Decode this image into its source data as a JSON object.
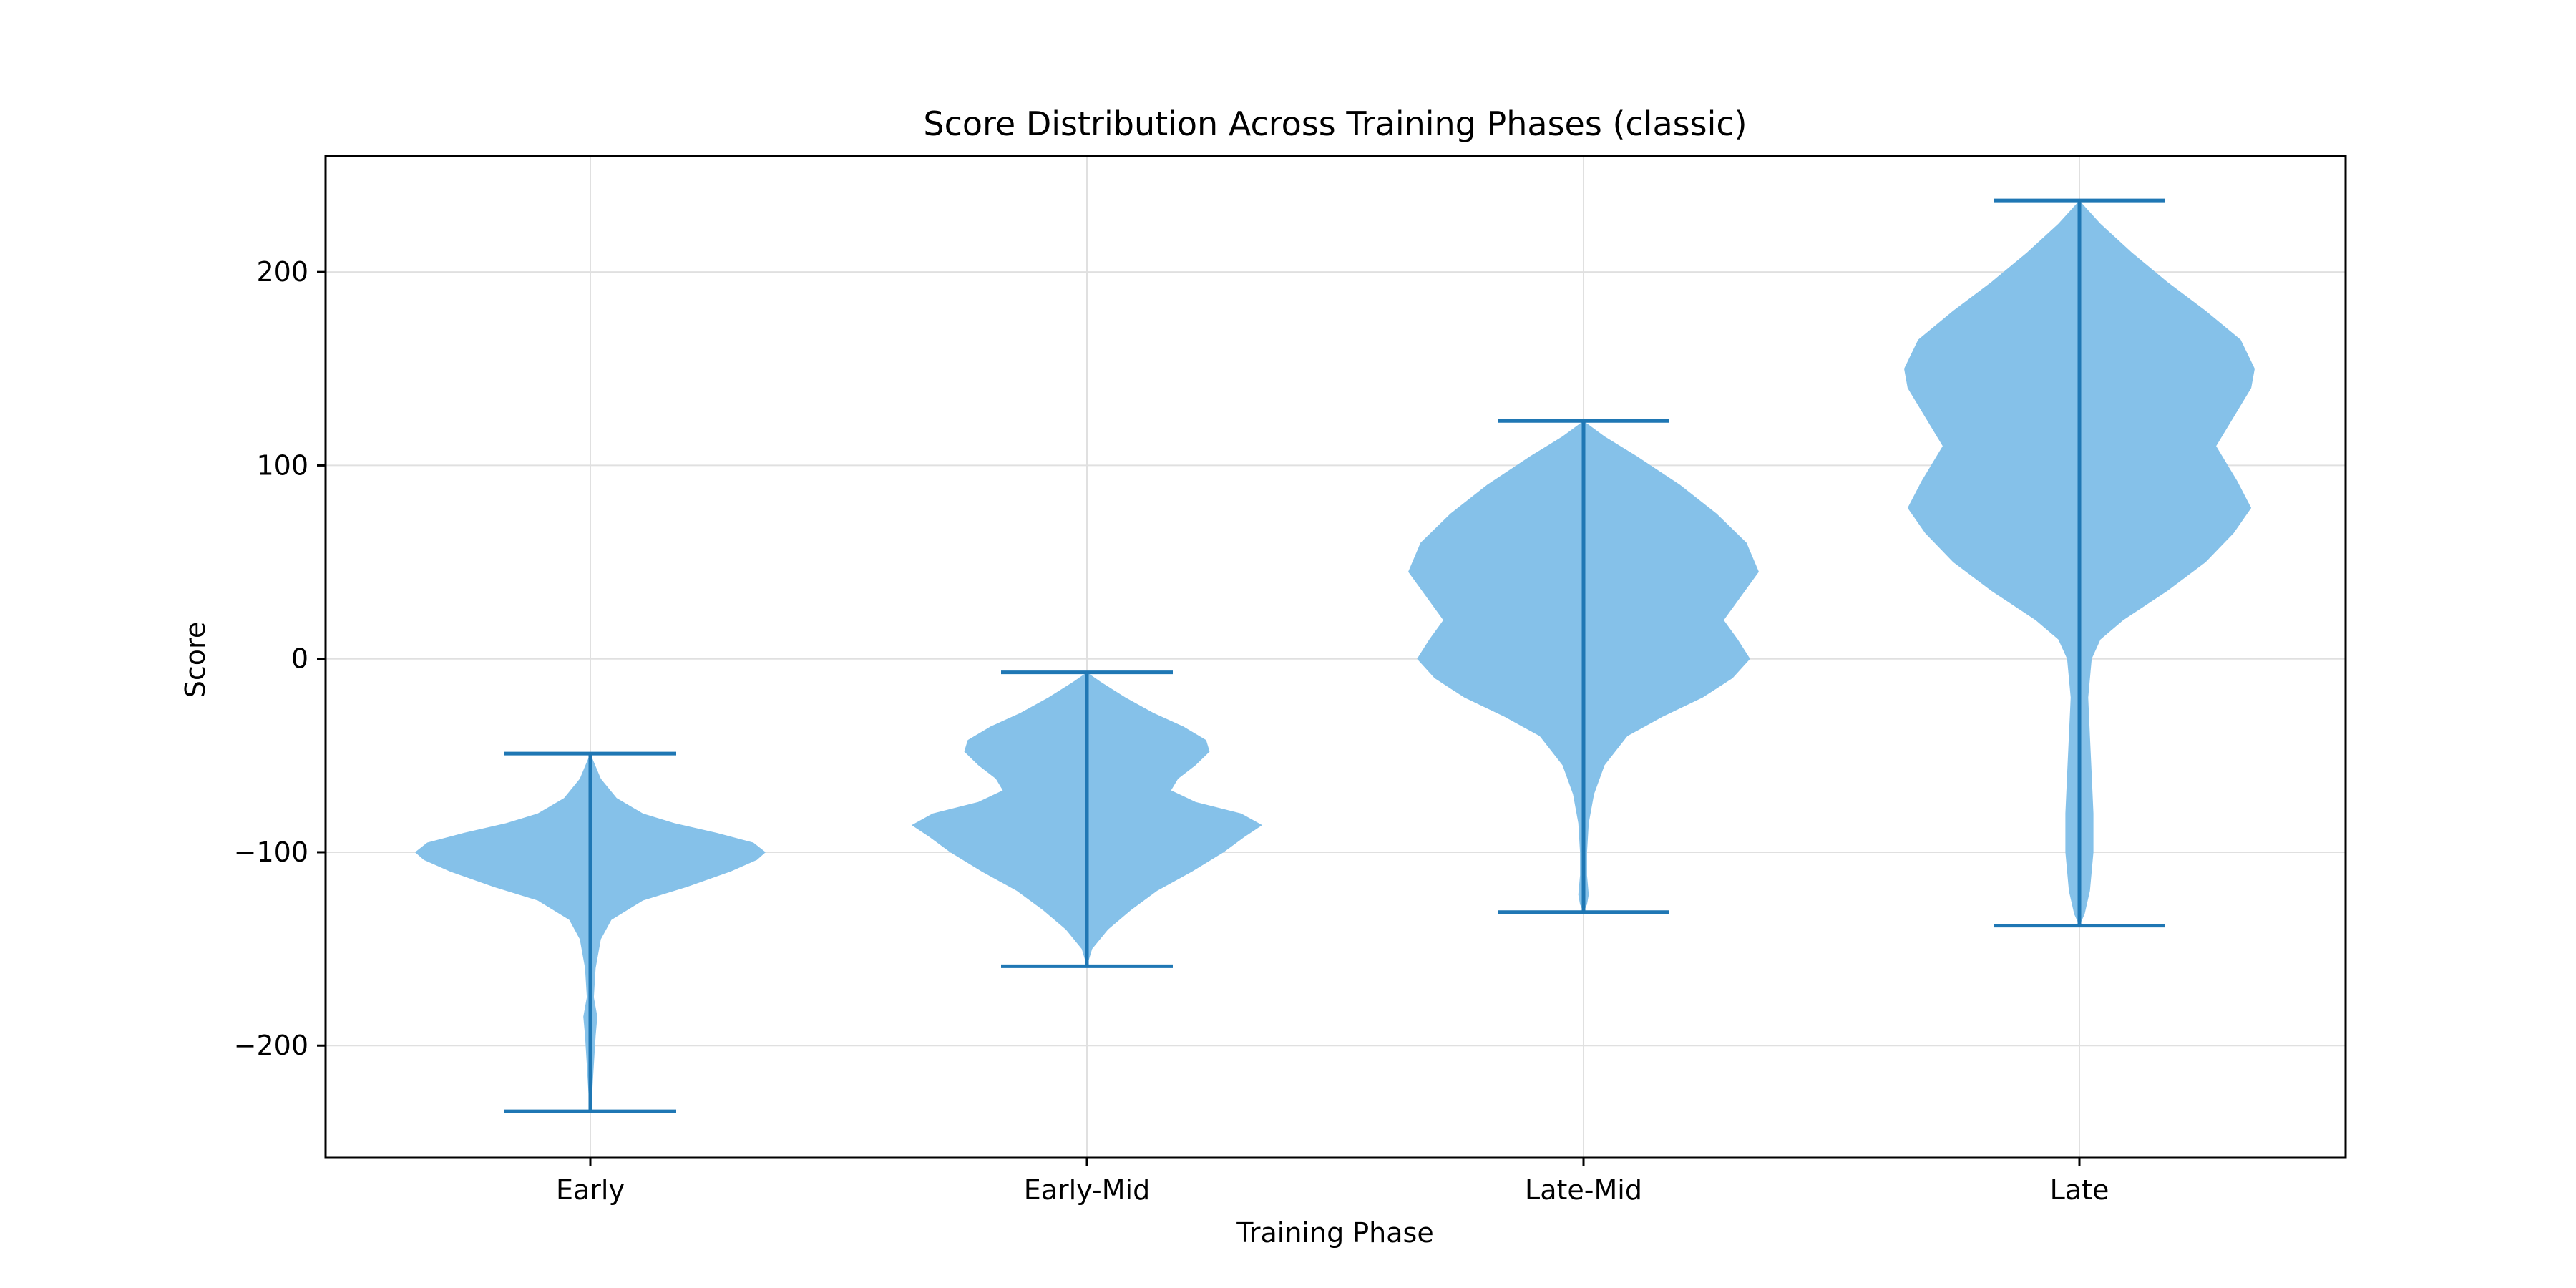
{
  "chart_data": {
    "type": "violin",
    "title": "Score Distribution Across Training Phases (classic)",
    "xlabel": "Training Phase",
    "ylabel": "Score",
    "ylim": [
      -258,
      260
    ],
    "yticks": [
      -200,
      -100,
      0,
      100,
      200
    ],
    "ytick_labels": [
      "−200",
      "−100",
      "0",
      "100",
      "200"
    ],
    "grid": true,
    "colors": {
      "fill": "#85c1e9",
      "line": "#1f77b4",
      "grid": "#e0e0e0"
    },
    "categories": [
      "Early",
      "Early-Mid",
      "Late-Mid",
      "Late"
    ],
    "violins": [
      {
        "name": "Early",
        "min": -234,
        "max": -49,
        "profile": [
          [
            -234,
            0.0
          ],
          [
            -225,
            0.01
          ],
          [
            -210,
            0.02
          ],
          [
            -195,
            0.03
          ],
          [
            -185,
            0.04
          ],
          [
            -175,
            0.02
          ],
          [
            -160,
            0.03
          ],
          [
            -145,
            0.06
          ],
          [
            -135,
            0.12
          ],
          [
            -125,
            0.3
          ],
          [
            -118,
            0.55
          ],
          [
            -110,
            0.8
          ],
          [
            -104,
            0.95
          ],
          [
            -100,
            1.0
          ],
          [
            -95,
            0.93
          ],
          [
            -90,
            0.72
          ],
          [
            -85,
            0.48
          ],
          [
            -80,
            0.3
          ],
          [
            -72,
            0.15
          ],
          [
            -62,
            0.06
          ],
          [
            -49,
            0.0
          ]
        ]
      },
      {
        "name": "Early-Mid",
        "min": -159,
        "max": -7,
        "profile": [
          [
            -159,
            0.0
          ],
          [
            -150,
            0.03
          ],
          [
            -140,
            0.12
          ],
          [
            -130,
            0.25
          ],
          [
            -120,
            0.4
          ],
          [
            -110,
            0.6
          ],
          [
            -100,
            0.78
          ],
          [
            -92,
            0.9
          ],
          [
            -86,
            1.0
          ],
          [
            -80,
            0.88
          ],
          [
            -74,
            0.62
          ],
          [
            -68,
            0.48
          ],
          [
            -62,
            0.52
          ],
          [
            -55,
            0.62
          ],
          [
            -48,
            0.7
          ],
          [
            -42,
            0.68
          ],
          [
            -35,
            0.55
          ],
          [
            -28,
            0.38
          ],
          [
            -20,
            0.22
          ],
          [
            -12,
            0.08
          ],
          [
            -7,
            0.0
          ]
        ]
      },
      {
        "name": "Late-Mid",
        "min": -131,
        "max": 123,
        "profile": [
          [
            -131,
            0.0
          ],
          [
            -127,
            0.02
          ],
          [
            -122,
            0.03
          ],
          [
            -112,
            0.02
          ],
          [
            -100,
            0.02
          ],
          [
            -85,
            0.03
          ],
          [
            -70,
            0.06
          ],
          [
            -55,
            0.12
          ],
          [
            -40,
            0.25
          ],
          [
            -30,
            0.45
          ],
          [
            -20,
            0.68
          ],
          [
            -10,
            0.85
          ],
          [
            0,
            0.95
          ],
          [
            10,
            0.88
          ],
          [
            20,
            0.8
          ],
          [
            30,
            0.88
          ],
          [
            45,
            1.0
          ],
          [
            60,
            0.93
          ],
          [
            75,
            0.76
          ],
          [
            90,
            0.55
          ],
          [
            105,
            0.3
          ],
          [
            115,
            0.12
          ],
          [
            123,
            0.0
          ]
        ]
      },
      {
        "name": "Late",
        "min": -138,
        "max": 237,
        "profile": [
          [
            -138,
            0.0
          ],
          [
            -132,
            0.03
          ],
          [
            -120,
            0.06
          ],
          [
            -100,
            0.08
          ],
          [
            -80,
            0.08
          ],
          [
            -60,
            0.07
          ],
          [
            -40,
            0.06
          ],
          [
            -20,
            0.05
          ],
          [
            0,
            0.07
          ],
          [
            10,
            0.12
          ],
          [
            20,
            0.25
          ],
          [
            35,
            0.5
          ],
          [
            50,
            0.72
          ],
          [
            65,
            0.88
          ],
          [
            78,
            0.98
          ],
          [
            92,
            0.9
          ],
          [
            110,
            0.78
          ],
          [
            125,
            0.88
          ],
          [
            140,
            0.98
          ],
          [
            150,
            1.0
          ],
          [
            165,
            0.92
          ],
          [
            180,
            0.72
          ],
          [
            195,
            0.5
          ],
          [
            210,
            0.3
          ],
          [
            225,
            0.12
          ],
          [
            237,
            0.0
          ]
        ]
      }
    ]
  }
}
